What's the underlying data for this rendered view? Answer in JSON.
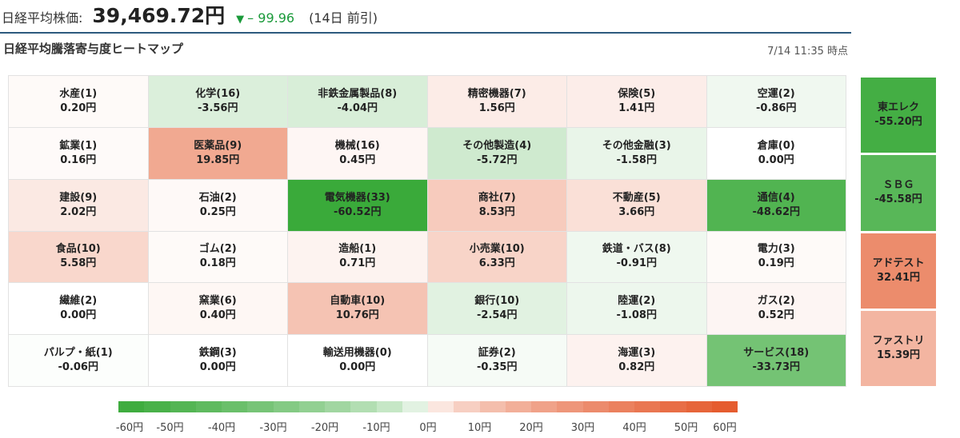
{
  "header": {
    "label": "日経平均株価:",
    "price": "39,469.72円",
    "change_arrow": "▼",
    "change": "– 99.96",
    "date_note": "(14日 前引)"
  },
  "heatmap": {
    "title": "日経平均騰落寄与度ヒートマップ",
    "timestamp": "7/14 11:35 時点",
    "cells": [
      {
        "name": "水産(1)",
        "value": "0.20円",
        "amount": 0.2
      },
      {
        "name": "化学(16)",
        "value": "-3.56円",
        "amount": -3.56
      },
      {
        "name": "非鉄金属製品(8)",
        "value": "-4.04円",
        "amount": -4.04
      },
      {
        "name": "精密機器(7)",
        "value": "1.56円",
        "amount": 1.56
      },
      {
        "name": "保険(5)",
        "value": "1.41円",
        "amount": 1.41
      },
      {
        "name": "空運(2)",
        "value": "-0.86円",
        "amount": -0.86
      },
      {
        "name": "鉱業(1)",
        "value": "0.16円",
        "amount": 0.16
      },
      {
        "name": "医薬品(9)",
        "value": "19.85円",
        "amount": 19.85
      },
      {
        "name": "機械(16)",
        "value": "0.45円",
        "amount": 0.45
      },
      {
        "name": "その他製造(4)",
        "value": "-5.72円",
        "amount": -5.72
      },
      {
        "name": "その他金融(3)",
        "value": "-1.58円",
        "amount": -1.58
      },
      {
        "name": "倉庫(0)",
        "value": "0.00円",
        "amount": 0.0
      },
      {
        "name": "建設(9)",
        "value": "2.02円",
        "amount": 2.02
      },
      {
        "name": "石油(2)",
        "value": "0.25円",
        "amount": 0.25
      },
      {
        "name": "電気機器(33)",
        "value": "-60.52円",
        "amount": -60.52
      },
      {
        "name": "商社(7)",
        "value": "8.53円",
        "amount": 8.53
      },
      {
        "name": "不動産(5)",
        "value": "3.66円",
        "amount": 3.66
      },
      {
        "name": "通信(4)",
        "value": "-48.62円",
        "amount": -48.62
      },
      {
        "name": "食品(10)",
        "value": "5.58円",
        "amount": 5.58
      },
      {
        "name": "ゴム(2)",
        "value": "0.18円",
        "amount": 0.18
      },
      {
        "name": "造船(1)",
        "value": "0.71円",
        "amount": 0.71
      },
      {
        "name": "小売業(10)",
        "value": "6.33円",
        "amount": 6.33
      },
      {
        "name": "鉄道・バス(8)",
        "value": "-0.91円",
        "amount": -0.91
      },
      {
        "name": "電力(3)",
        "value": "0.19円",
        "amount": 0.19
      },
      {
        "name": "繊維(2)",
        "value": "0.00円",
        "amount": 0.0
      },
      {
        "name": "窯業(6)",
        "value": "0.40円",
        "amount": 0.4
      },
      {
        "name": "自動車(10)",
        "value": "10.76円",
        "amount": 10.76
      },
      {
        "name": "銀行(10)",
        "value": "-2.54円",
        "amount": -2.54
      },
      {
        "name": "陸運(2)",
        "value": "-1.08円",
        "amount": -1.08
      },
      {
        "name": "ガス(2)",
        "value": "0.52円",
        "amount": 0.52
      },
      {
        "name": "パルプ・紙(1)",
        "value": "-0.06円",
        "amount": -0.06
      },
      {
        "name": "鉄鋼(3)",
        "value": "0.00円",
        "amount": 0.0
      },
      {
        "name": "輸送用機器(0)",
        "value": "0.00円",
        "amount": 0.0
      },
      {
        "name": "証券(2)",
        "value": "-0.35円",
        "amount": -0.35
      },
      {
        "name": "海運(3)",
        "value": "0.82円",
        "amount": 0.82
      },
      {
        "name": "サービス(18)",
        "value": "-33.73円",
        "amount": -33.73
      }
    ]
  },
  "top_contributors": [
    {
      "name": "東エレク",
      "value": "-55.20円",
      "amount": -55.2
    },
    {
      "name": "ＳＢＧ",
      "value": "-45.58円",
      "amount": -45.58
    },
    {
      "name": "アドテスト",
      "value": "32.41円",
      "amount": 32.41
    },
    {
      "name": "ファストリ",
      "value": "15.39円",
      "amount": 15.39
    }
  ],
  "scale": {
    "labels": [
      "-60円",
      "-50円",
      "-40円",
      "-30円",
      "-20円",
      "-10円",
      "0円",
      "10円",
      "20円",
      "30円",
      "40円",
      "50円",
      "60円"
    ],
    "min": -60,
    "max": 60,
    "negative_color": "#3aaa3a",
    "positive_color": "#e4582a"
  }
}
